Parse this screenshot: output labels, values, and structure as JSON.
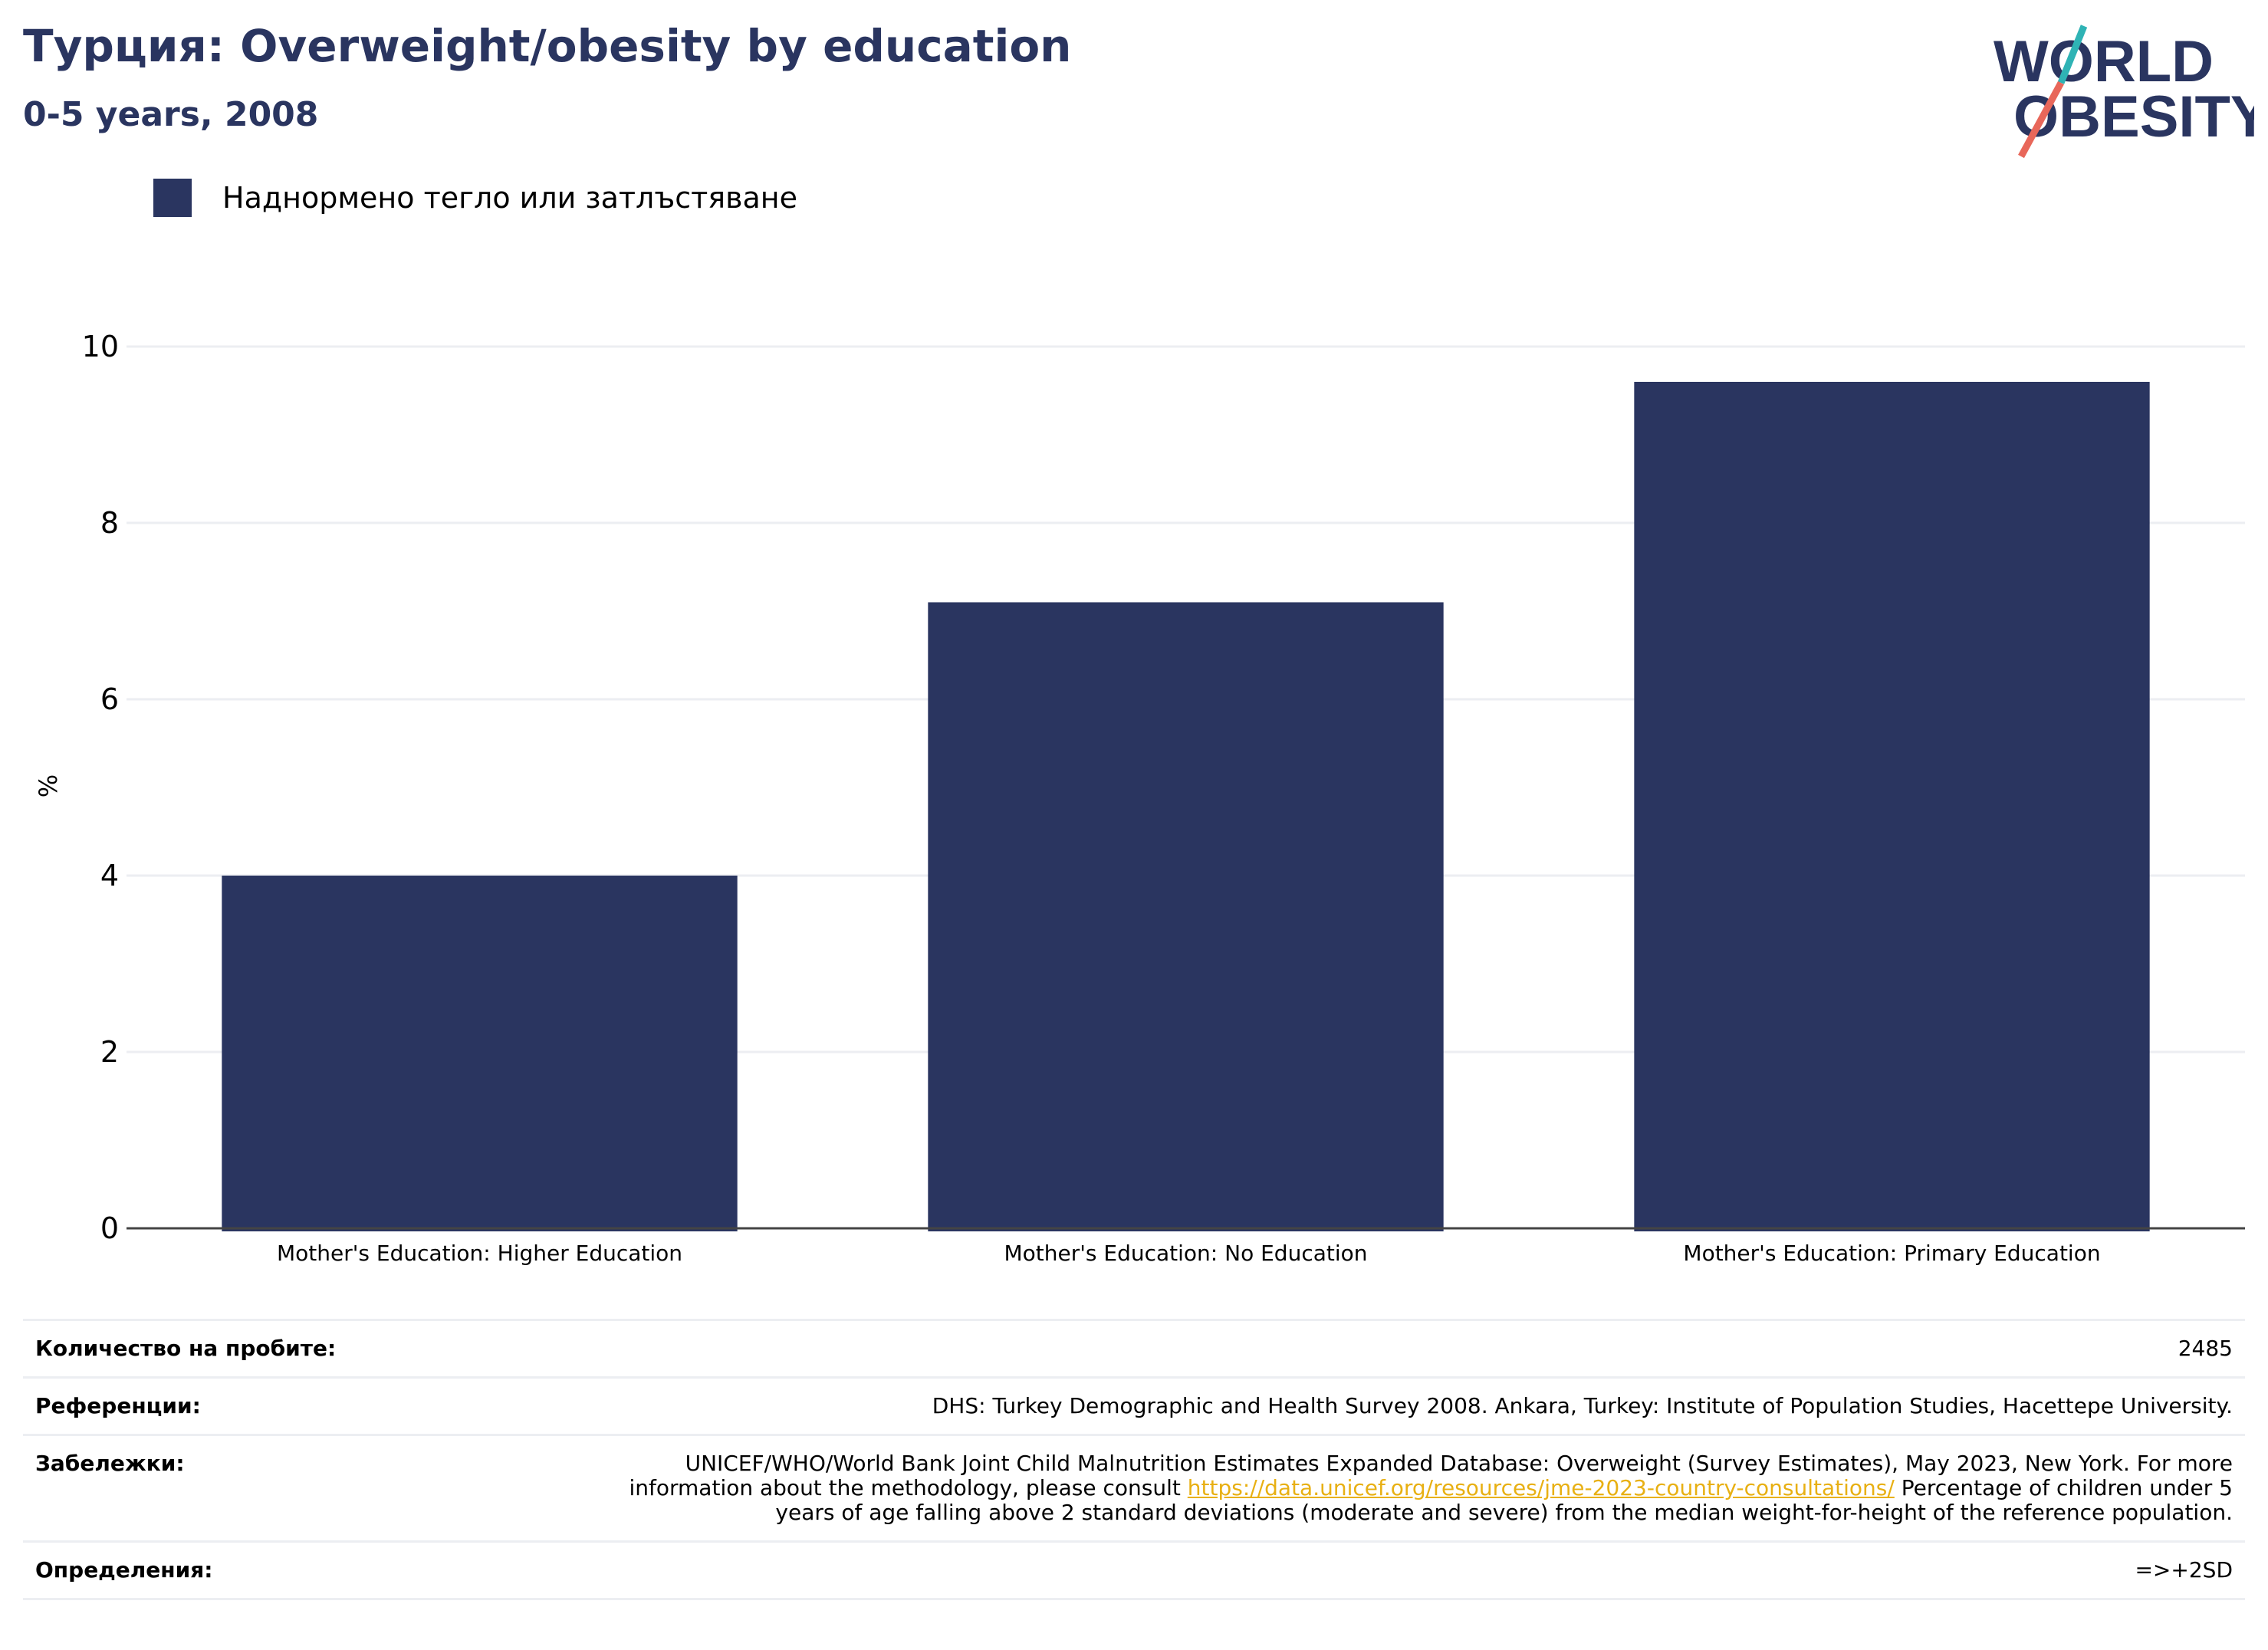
{
  "header": {
    "title": "Турция: Overweight/obesity by education",
    "subtitle": "0-5 years, 2008"
  },
  "logo": {
    "line1": "WORLD",
    "line2": "OBESITY",
    "colors": {
      "text": "#2a3560",
      "slash_top": "#2fb3b5",
      "slash_bottom": "#e8675a"
    }
  },
  "legend": {
    "label": "Наднормено тегло или затлъстяване",
    "color": "#2a3560"
  },
  "chart_data": {
    "type": "bar",
    "categories": [
      "Mother's Education: Higher Education",
      "Mother's Education: No Education",
      "Mother's Education: Primary Education"
    ],
    "series": [
      {
        "name": "Наднормено тегло или затлъстяване",
        "values": [
          4.0,
          7.1,
          9.6
        ],
        "color": "#2a3560"
      }
    ],
    "ylabel": "%",
    "ylim": [
      0,
      10
    ],
    "yticks": [
      0,
      2,
      4,
      6,
      8,
      10
    ],
    "grid": true,
    "legend_position": "top-left"
  },
  "info": {
    "sample_label": "Количество на пробите:",
    "sample_value": "2485",
    "references_label": "Референции:",
    "references_value": "DHS: Turkey Demographic and Health Survey 2008. Ankara, Turkey: Institute of Population Studies, Hacettepe University.",
    "notes_label": "Забележки:",
    "notes_before": "UNICEF/WHO/World Bank Joint Child Malnutrition Estimates Expanded Database: Overweight (Survey Estimates), May 2023, New York. For more information about the methodology, please consult ",
    "notes_link": "https://data.unicef.org/resources/jme-2023-country-consultations/",
    "notes_after": " Percentage of children under 5 years of age falling above 2 standard deviations (moderate and severe) from the median weight-for-height of the reference population.",
    "definitions_label": "Определения:",
    "definitions_value": "=>+2SD"
  }
}
